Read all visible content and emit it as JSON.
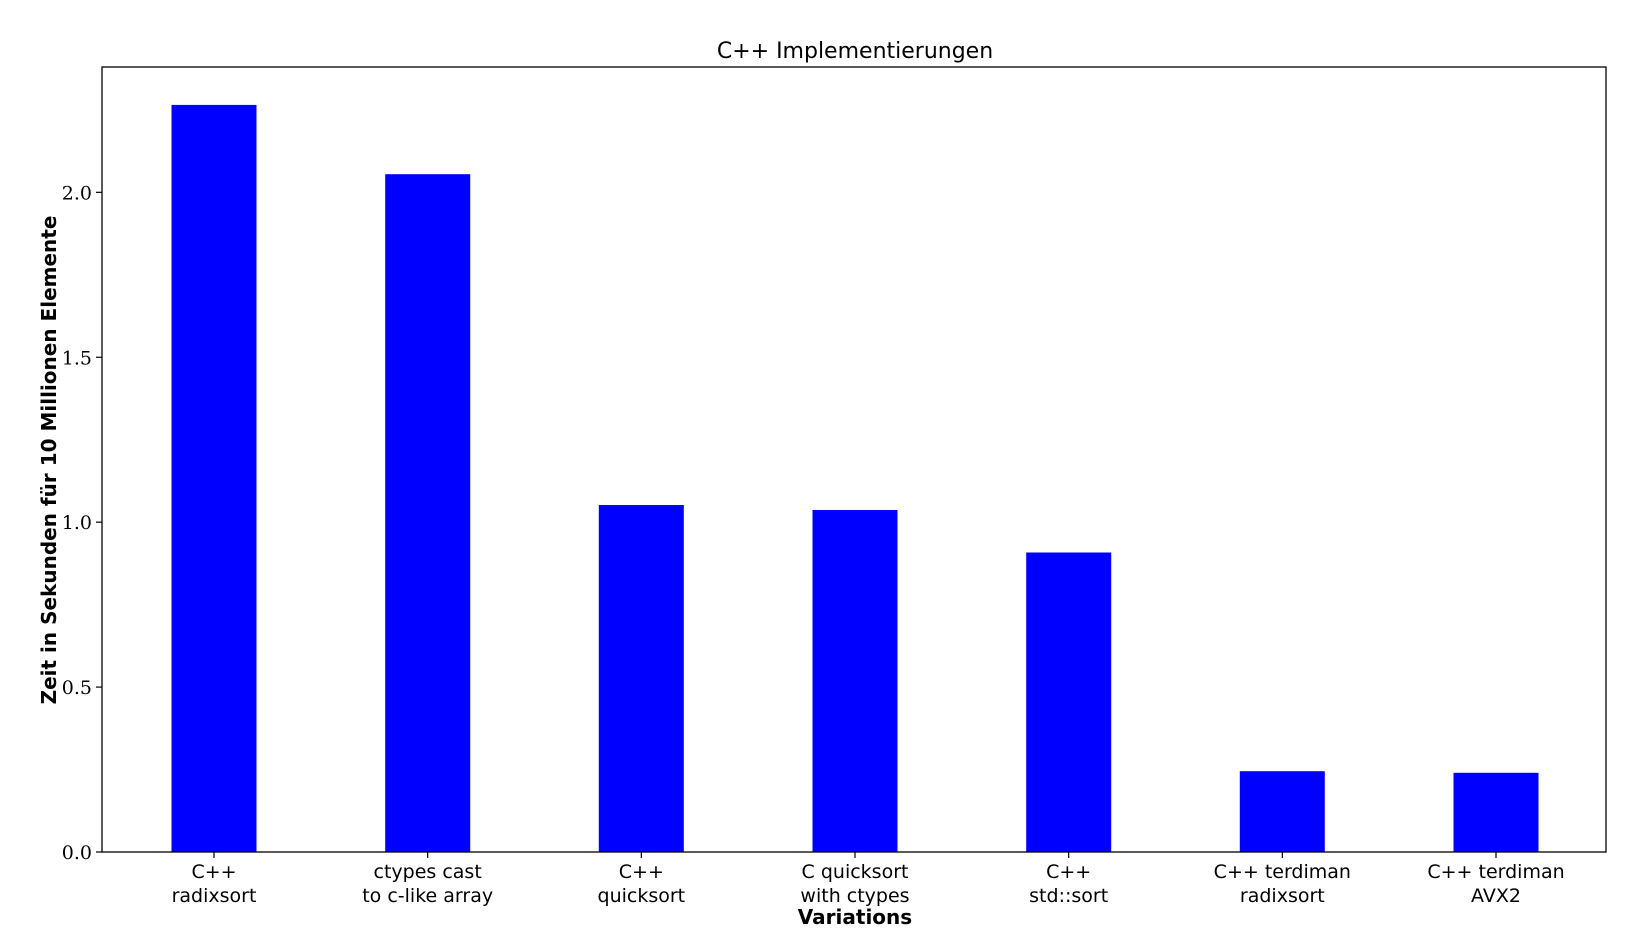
{
  "chart_data": {
    "type": "bar",
    "title": "C++ Implementierungen",
    "xlabel": "Variations",
    "ylabel": "Zeit in Sekunden für 10 Millionen Elemente",
    "categories": [
      [
        "C++",
        "radixsort"
      ],
      [
        "ctypes cast",
        "to c-like array"
      ],
      [
        "C++",
        "quicksort"
      ],
      [
        "C quicksort",
        "with ctypes"
      ],
      [
        "C++",
        "std::sort"
      ],
      [
        "C++ terdiman",
        "radixsort"
      ],
      [
        "C++ terdiman",
        "AVX2"
      ]
    ],
    "values": [
      2.265,
      2.055,
      1.052,
      1.037,
      0.908,
      0.245,
      0.24
    ],
    "ylim": [
      0,
      2.38
    ],
    "yticks": [
      "0.0",
      "0.5",
      "1.0",
      "1.5",
      "2.0"
    ],
    "bar_color": "#0000ff",
    "grid": false,
    "legend": "none"
  }
}
